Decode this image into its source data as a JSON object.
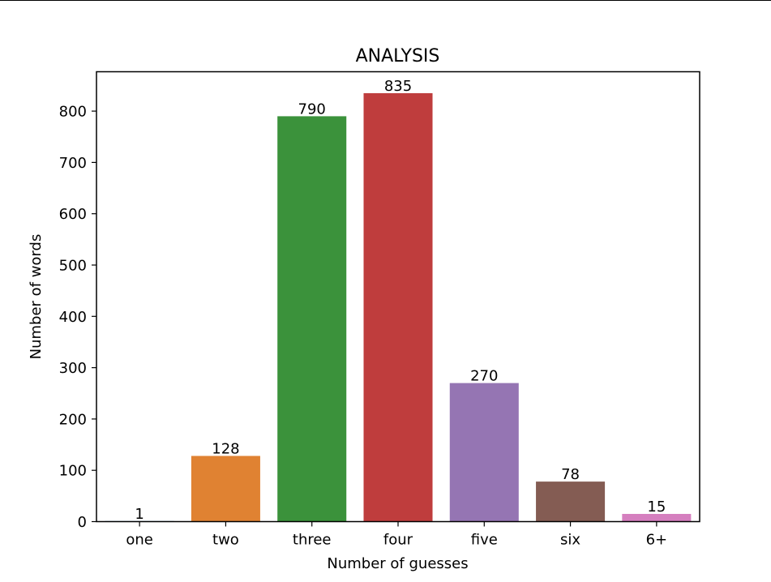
{
  "chart_data": {
    "type": "bar",
    "title": "ANALYSIS",
    "xlabel": "Number of guesses",
    "ylabel": "Number of words",
    "categories": [
      "one",
      "two",
      "three",
      "four",
      "five",
      "six",
      "6+"
    ],
    "values": [
      1,
      128,
      790,
      835,
      270,
      78,
      15
    ],
    "data_labels": [
      "1",
      "128",
      "790",
      "835",
      "270",
      "78",
      "15"
    ],
    "colors": [
      "#1f77b4",
      "#e08232",
      "#3b923b",
      "#bf3d3d",
      "#9575b3",
      "#845c53",
      "#d57fbf"
    ],
    "ylim": [
      0,
      876.75
    ],
    "yticks": [
      0,
      100,
      200,
      300,
      400,
      500,
      600,
      700,
      800
    ],
    "grid": false,
    "legend": "none"
  }
}
